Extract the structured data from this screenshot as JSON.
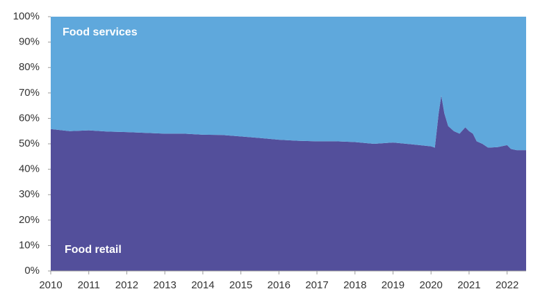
{
  "chart_data": {
    "type": "stacked-area",
    "x": [
      2010,
      2010.5,
      2011,
      2011.5,
      2012,
      2012.5,
      2013,
      2013.5,
      2014,
      2014.5,
      2015,
      2015.5,
      2016,
      2016.5,
      2017,
      2017.5,
      2018,
      2018.5,
      2019,
      2019.5,
      2020,
      2020.1,
      2020.2,
      2020.27,
      2020.35,
      2020.45,
      2020.6,
      2020.75,
      2020.9,
      2021,
      2021.1,
      2021.2,
      2021.35,
      2021.5,
      2021.75,
      2022,
      2022.1,
      2022.25,
      2022.5
    ],
    "series": [
      {
        "name": "Food retail",
        "color": "#534f9b",
        "values": [
          55.8,
          55.0,
          55.3,
          54.8,
          54.6,
          54.3,
          54.0,
          54.0,
          53.6,
          53.5,
          52.9,
          52.3,
          51.6,
          51.2,
          51.0,
          51.0,
          50.7,
          50.0,
          50.5,
          49.8,
          49.0,
          48.5,
          62,
          69,
          62,
          57,
          55,
          54,
          56.5,
          55,
          54,
          51,
          50,
          48.5,
          48.7,
          49.5,
          48,
          47.5,
          47.5
        ]
      },
      {
        "name": "Food services",
        "color": "#5fa8dc",
        "values": [
          44.2,
          45.0,
          44.7,
          45.2,
          45.4,
          45.7,
          46.0,
          46.0,
          46.4,
          46.5,
          47.1,
          47.7,
          48.4,
          48.8,
          49.0,
          49.0,
          49.3,
          50.0,
          49.5,
          50.2,
          51.0,
          51.5,
          38,
          31,
          38,
          43,
          45,
          46,
          43.5,
          45,
          46,
          49,
          50,
          51.5,
          51.3,
          50.5,
          52,
          52.5,
          52.5
        ]
      }
    ],
    "xlim": [
      2010,
      2022.5
    ],
    "xticks": [
      2010,
      2011,
      2012,
      2013,
      2014,
      2015,
      2016,
      2017,
      2018,
      2019,
      2020,
      2021,
      2022
    ],
    "ylim": [
      0,
      100
    ],
    "yticks": [
      {
        "value": 0,
        "label": "0%"
      },
      {
        "value": 10,
        "label": "10%"
      },
      {
        "value": 20,
        "label": "20%"
      },
      {
        "value": 30,
        "label": "30%"
      },
      {
        "value": 40,
        "label": "40%"
      },
      {
        "value": 50,
        "label": "50%"
      },
      {
        "value": 60,
        "label": "60%"
      },
      {
        "value": 70,
        "label": "70%"
      },
      {
        "value": 80,
        "label": "80%"
      },
      {
        "value": 90,
        "label": "90%"
      },
      {
        "value": 100,
        "label": "100%"
      }
    ]
  }
}
